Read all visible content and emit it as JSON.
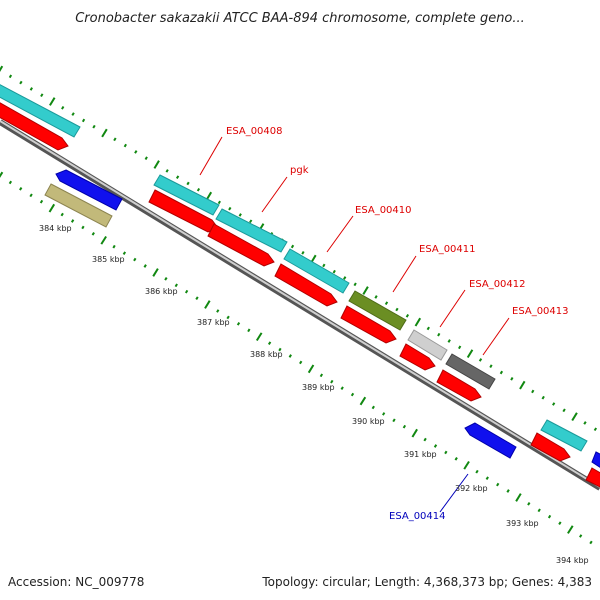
{
  "title": "Cronobacter sakazakii ATCC BAA-894 chromosome, complete geno...",
  "footer": {
    "accession": "Accession: NC_009778",
    "summary": "Topology: circular; Length: 4,368,373 bp; Genes: 4,383"
  },
  "colors": {
    "red": "#ff0000",
    "cyan": "#33cccc",
    "blue": "#1010ee",
    "olive": "#c2b97a",
    "green": "#6b8e23",
    "light_gray": "#cfcfcf",
    "dark_gray": "#666666",
    "tick_green": "#118811",
    "label_red": "#dd0000",
    "label_blue": "#0000bb"
  },
  "scale_labels": [
    "384 kbp",
    "385 kbp",
    "386 kbp",
    "387 kbp",
    "388 kbp",
    "389 kbp",
    "390 kbp",
    "391 kbp",
    "392 kbp",
    "393 kbp",
    "394 kbp"
  ],
  "gene_labels": [
    {
      "text": "ESA_00408",
      "color": "red"
    },
    {
      "text": "pgk",
      "color": "red"
    },
    {
      "text": "ESA_00410",
      "color": "red"
    },
    {
      "text": "ESA_00411",
      "color": "red"
    },
    {
      "text": "ESA_00412",
      "color": "red"
    },
    {
      "text": "ESA_00413",
      "color": "red"
    },
    {
      "text": "ESA_00414",
      "color": "blue"
    }
  ]
}
